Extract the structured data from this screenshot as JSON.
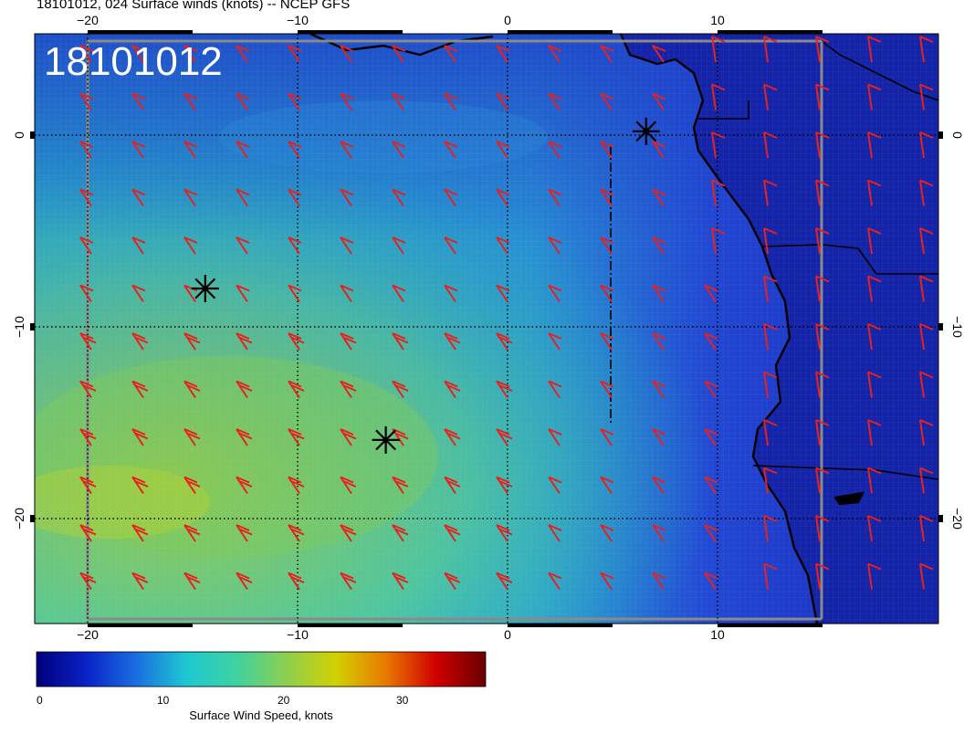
{
  "header": {
    "title": "18101012, 024 Surface winds (knots) -- NCEP GFS"
  },
  "map": {
    "stamp": "18101012",
    "lon_ticks": [
      "−20",
      "−10",
      "0",
      "10"
    ],
    "lat_ticks": [
      "0",
      "−10",
      "−20"
    ],
    "lon_range": [
      -22.5,
      20.5
    ],
    "lat_range": [
      -25.5,
      5.0
    ],
    "field_colors": {
      "low": "#1f3cc8",
      "mid": "#1fb4c8",
      "high": "#8ccf50"
    },
    "barb_color": "#e8201e",
    "coast_color": "#000000",
    "markers": [
      {
        "lon": 6.6,
        "lat": 0.2
      },
      {
        "lon": -14.4,
        "lat": -8.0
      },
      {
        "lon": -5.8,
        "lat": -15.9
      }
    ]
  },
  "colorbar": {
    "ticks": [
      "0",
      "10",
      "20",
      "30"
    ],
    "title": "Surface Wind Speed, knots",
    "colors": [
      "#00007a",
      "#0a22c8",
      "#1a6ee0",
      "#1ec8d2",
      "#3ed2a0",
      "#8ccf50",
      "#d2d000",
      "#e87a00",
      "#d00000",
      "#6a0000"
    ]
  }
}
